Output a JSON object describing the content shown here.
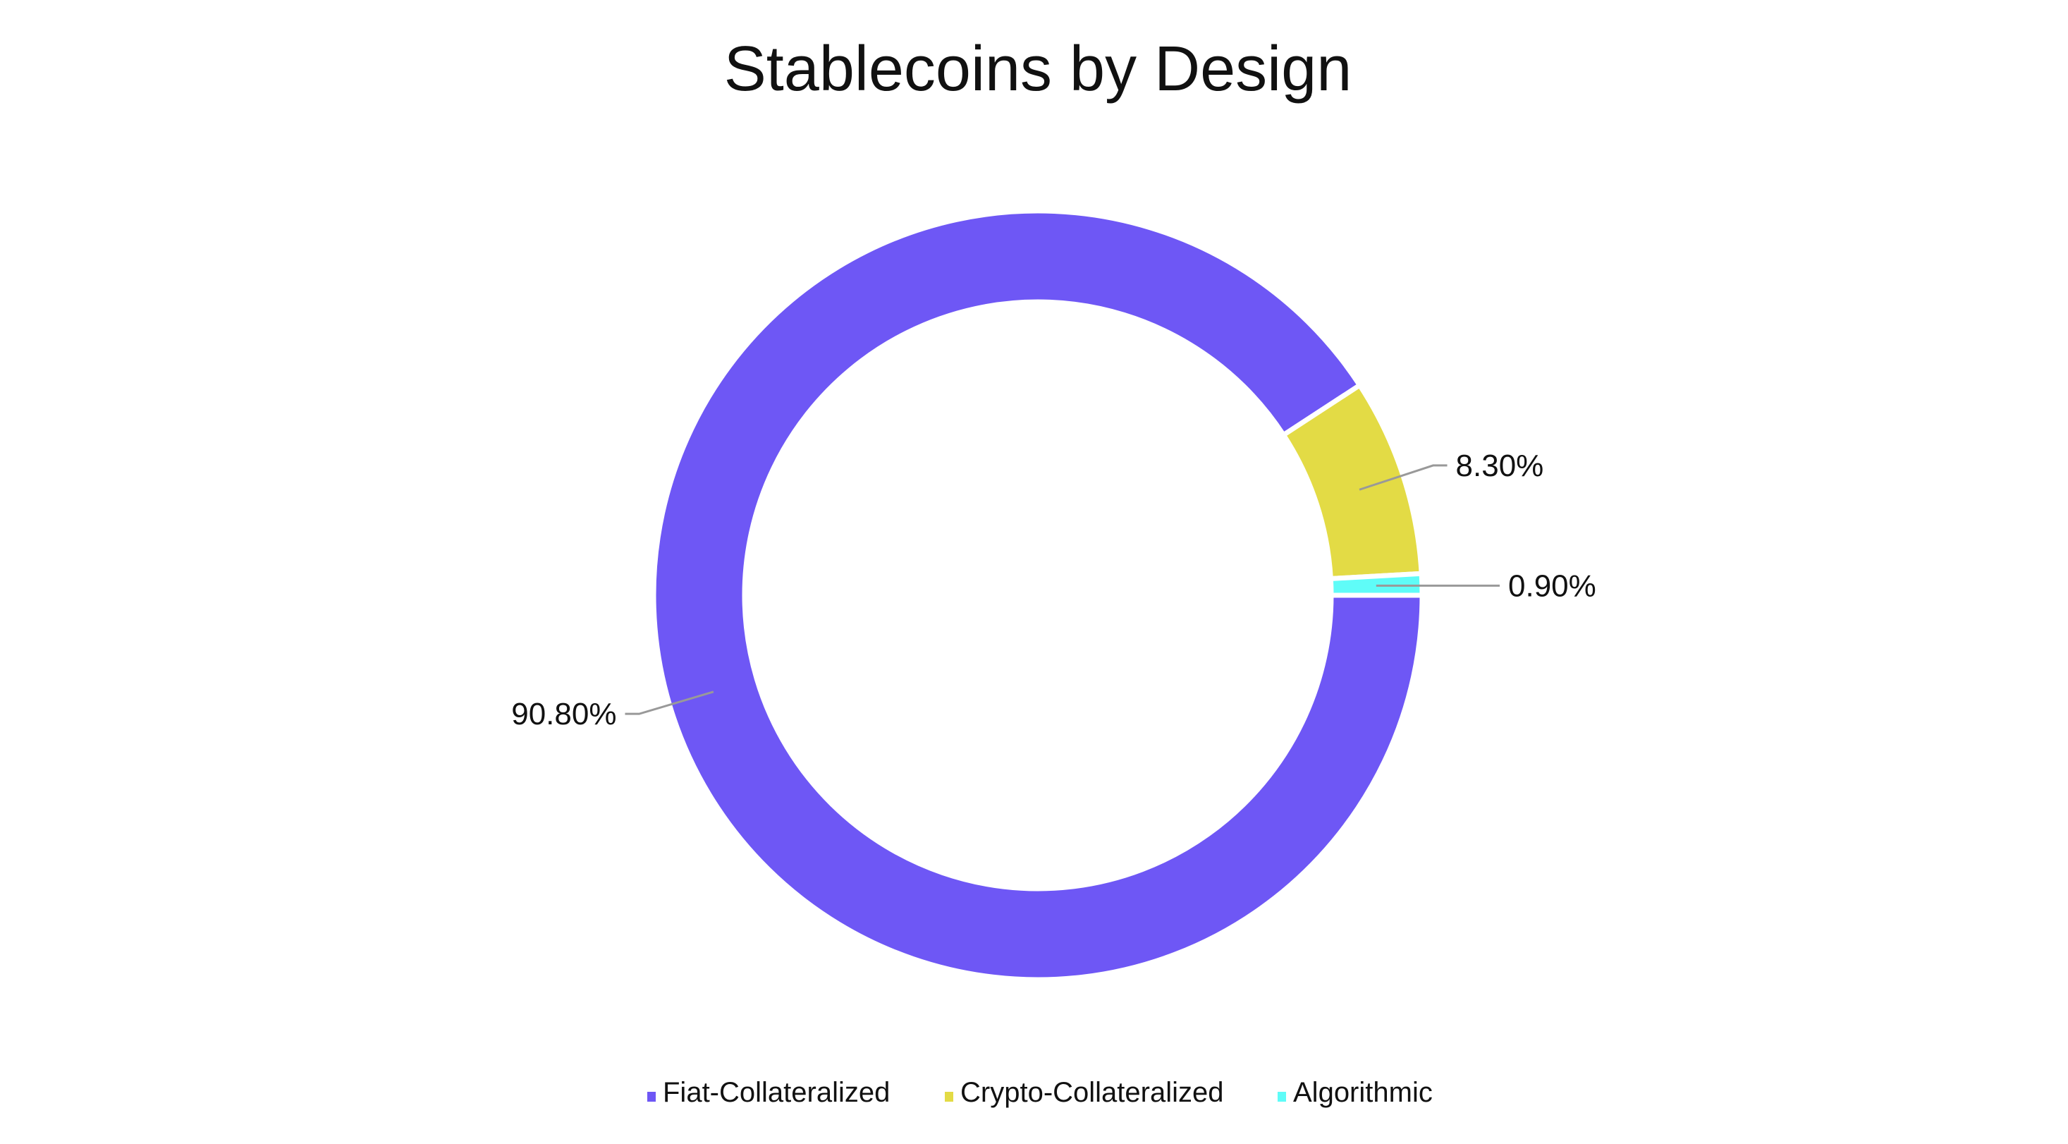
{
  "chart_data": {
    "type": "pie",
    "variant": "donut",
    "title": "Stablecoins by Design",
    "categories": [
      "Fiat-Collateralized",
      "Crypto-Collateralized",
      "Algorithmic"
    ],
    "values": [
      90.8,
      8.3,
      0.9
    ],
    "data_labels": [
      "90.80%",
      "8.30%",
      "0.90%"
    ],
    "colors": [
      "#6E57F5",
      "#E3DB45",
      "#5FFCF8"
    ],
    "legend_placement": "bottom",
    "start_angle": "3 o'clock, clockwise"
  }
}
